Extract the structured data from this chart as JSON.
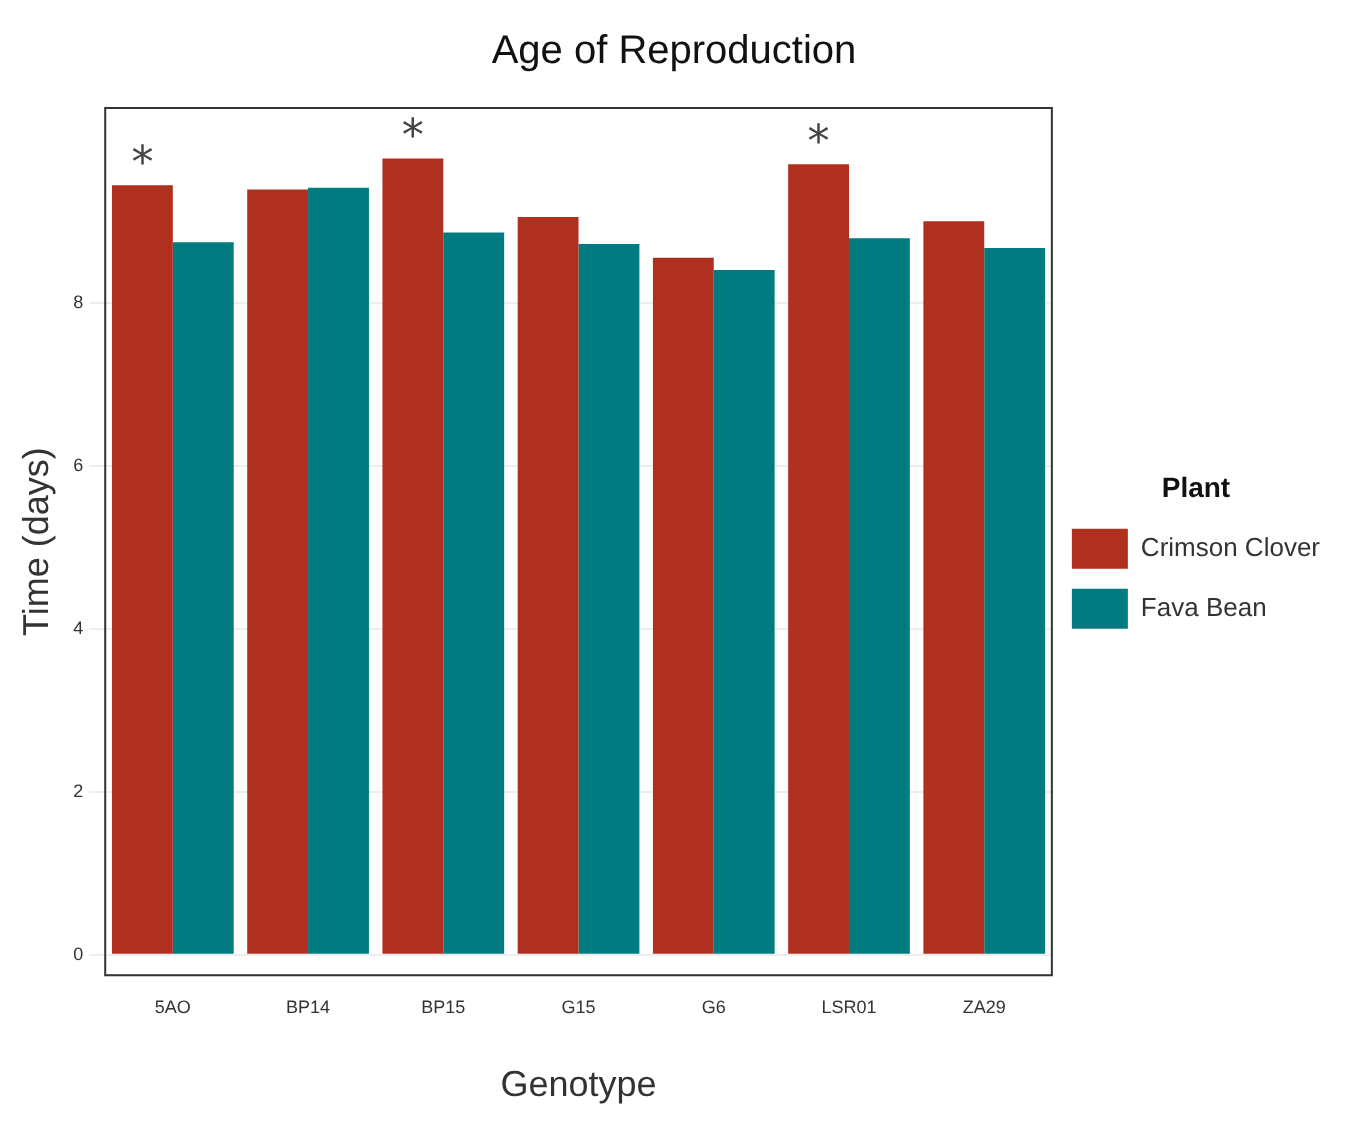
{
  "chart_data": {
    "type": "bar",
    "title": "Age of Reproduction",
    "xlabel": "Genotype",
    "ylabel": "Time (days)",
    "legend_title": "Plant",
    "legend": "right",
    "grid": "y",
    "categories": [
      "5AO",
      "BP14",
      "BP15",
      "G15",
      "G6",
      "LSR01",
      "ZA29"
    ],
    "series": [
      {
        "name": "Crimson Clover",
        "color": "#b03020",
        "values": [
          9.45,
          9.4,
          9.78,
          9.06,
          8.56,
          9.71,
          9.01
        ]
      },
      {
        "name": "Fava Bean",
        "color": "#007b80",
        "values": [
          8.75,
          9.42,
          8.87,
          8.73,
          8.41,
          8.8,
          8.68
        ]
      }
    ],
    "ylim": [
      -0.25,
      10.4
    ],
    "yticks": [
      0,
      2,
      4,
      6,
      8
    ],
    "annotations": [
      {
        "text": "*",
        "x": "5AO",
        "y": 9.45
      },
      {
        "text": "*",
        "x": "BP15",
        "y": 9.78
      },
      {
        "text": "*",
        "x": "LSR01",
        "y": 9.71
      }
    ]
  }
}
